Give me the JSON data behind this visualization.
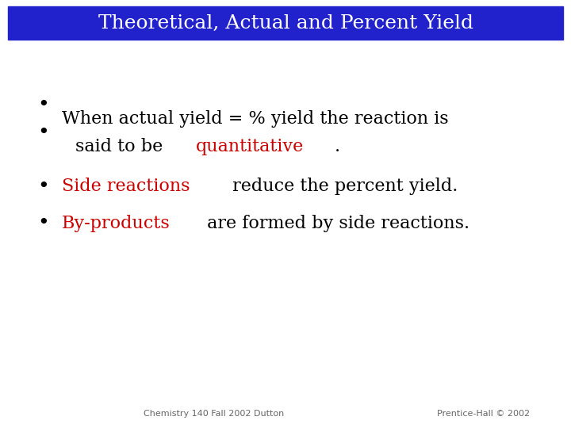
{
  "title": "Theoretical, Actual and Percent Yield",
  "title_bg_color": "#2222cc",
  "title_text_color": "#ffffff",
  "background_color": "#ffffff",
  "footer_left": "Chemistry 140 Fall 2002 Dutton",
  "footer_right": "Prentice-Hall © 2002",
  "footer_color": "#666666",
  "footer_fontsize": 8,
  "title_fontsize": 18,
  "body_fontsize": 16,
  "bullet_color": "#000000",
  "black": "#000000",
  "red": "#cc0000"
}
